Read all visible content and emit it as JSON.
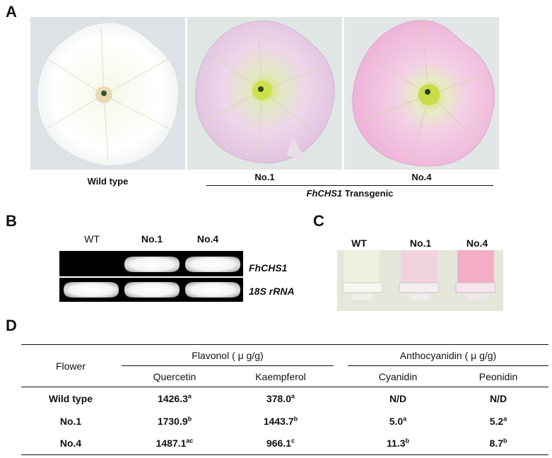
{
  "panels": {
    "a": "A",
    "b": "B",
    "c": "C",
    "d": "D"
  },
  "panel_a": {
    "photo_labels": [
      "Wild type",
      "No.1",
      "No.4"
    ],
    "transgenic_gene": "FhCHS1",
    "transgenic_suffix": " Transgenic",
    "colors": {
      "wild_type": "#ffffff",
      "no1": "#e7c9e4",
      "no4": "#f0b6dc",
      "center": "#cde05a"
    }
  },
  "panel_b": {
    "lanes": [
      "WT",
      "No.1",
      "No.4"
    ],
    "rows": [
      {
        "label": "FhCHS1",
        "bands": [
          false,
          true,
          true
        ]
      },
      {
        "label": "18S rRNA",
        "bands": [
          true,
          true,
          true
        ]
      }
    ]
  },
  "panel_c": {
    "tubes": [
      "WT",
      "No.1",
      "No.4"
    ],
    "colors": [
      "#eaf0dc",
      "#f2d6e2",
      "#f3b3cb"
    ]
  },
  "panel_d": {
    "row_header": "Flower",
    "group_headers": [
      "Flavonol ( μ g/g)",
      "Anthocyanidin ( μ g/g)"
    ],
    "columns": [
      "Quercetin",
      "Kaempferol",
      "Cyanidin",
      "Peonidin"
    ],
    "rows": [
      {
        "name": "Wild type",
        "values": [
          [
            "1426.3",
            "a"
          ],
          [
            "378.0",
            "a"
          ],
          [
            "N/D",
            ""
          ],
          [
            "N/D",
            ""
          ]
        ]
      },
      {
        "name": "No.1",
        "values": [
          [
            "1730.9",
            "b"
          ],
          [
            "1443.7",
            "b"
          ],
          [
            "5.0",
            "a"
          ],
          [
            "5.2",
            "a"
          ]
        ]
      },
      {
        "name": "No.4",
        "values": [
          [
            "1487.1",
            "ac"
          ],
          [
            "966.1",
            "c"
          ],
          [
            "11.3",
            "b"
          ],
          [
            "8.7",
            "b"
          ]
        ]
      }
    ]
  }
}
